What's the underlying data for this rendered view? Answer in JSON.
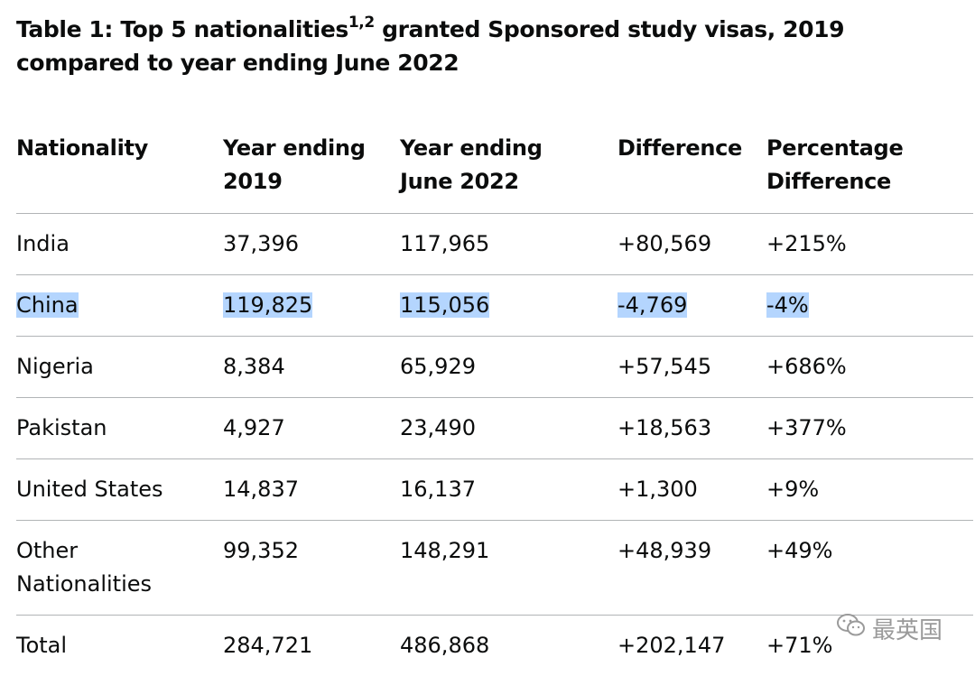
{
  "caption": {
    "prefix": "Table 1: Top 5 nationalities",
    "superscript": "1,2",
    "suffix": " granted Sponsored study visas, 2019 compared to year ending June 2022"
  },
  "table": {
    "headers": [
      [
        "Nationality"
      ],
      [
        "Year ending",
        "2019"
      ],
      [
        "Year ending",
        "June 2022"
      ],
      [
        "Difference"
      ],
      [
        "Percentage",
        "Difference"
      ]
    ],
    "rows": [
      {
        "nationality": [
          "India"
        ],
        "y2019": "37,396",
        "y2022": "117,965",
        "difference": "+80,569",
        "pct": "+215%",
        "highlighted": false
      },
      {
        "nationality": [
          "China"
        ],
        "y2019": "119,825",
        "y2022": "115,056",
        "difference": "-4,769",
        "pct": "-4%",
        "highlighted": true
      },
      {
        "nationality": [
          "Nigeria"
        ],
        "y2019": "8,384",
        "y2022": "65,929",
        "difference": "+57,545",
        "pct": "+686%",
        "highlighted": false
      },
      {
        "nationality": [
          "Pakistan"
        ],
        "y2019": "4,927",
        "y2022": "23,490",
        "difference": "+18,563",
        "pct": "+377%",
        "highlighted": false
      },
      {
        "nationality": [
          "United States"
        ],
        "y2019": "14,837",
        "y2022": "16,137",
        "difference": "+1,300",
        "pct": "+9%",
        "highlighted": false
      },
      {
        "nationality": [
          "Other",
          "Nationalities"
        ],
        "y2019": "99,352",
        "y2022": "148,291",
        "difference": "+48,939",
        "pct": "+49%",
        "highlighted": false
      },
      {
        "nationality": [
          "Total"
        ],
        "y2019": "284,721",
        "y2022": "486,868",
        "difference": "+202,147",
        "pct": "+71%",
        "highlighted": false
      }
    ]
  },
  "watermark": {
    "text": "最英国",
    "icon": "wechat-icon"
  },
  "colors": {
    "highlight": "#b4d5fe",
    "rule": "#b1b4b6",
    "text": "#0b0c0c"
  }
}
